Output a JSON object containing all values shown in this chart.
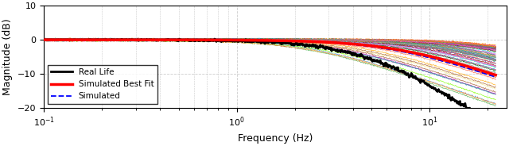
{
  "title": "",
  "xlabel": "Frequency (Hz)",
  "ylabel": "Magnitude (dB)",
  "xlim": [
    0.1,
    25
  ],
  "ylim": [
    -20,
    10
  ],
  "yticks": [
    -20,
    -10,
    0,
    10
  ],
  "freq_min": 0.1,
  "freq_max": 22,
  "real_life_color": "#000000",
  "best_fit_color": "#ff0000",
  "simulated_color": "#0000ff",
  "background_color": "#ffffff",
  "grid_color": "#cccccc",
  "real_life_lw": 2.0,
  "best_fit_lw": 2.5,
  "sim_bundle_lw": 0.5,
  "figsize": [
    6.4,
    1.84
  ],
  "dpi": 100,
  "n_bundle": 80,
  "fc_best": 7.0,
  "fc_real_1": 4.5,
  "fc_real_2": 6.0,
  "fc_sim": 6.5,
  "bundle_fc_min": 2.0,
  "bundle_fc_max": 30.0
}
